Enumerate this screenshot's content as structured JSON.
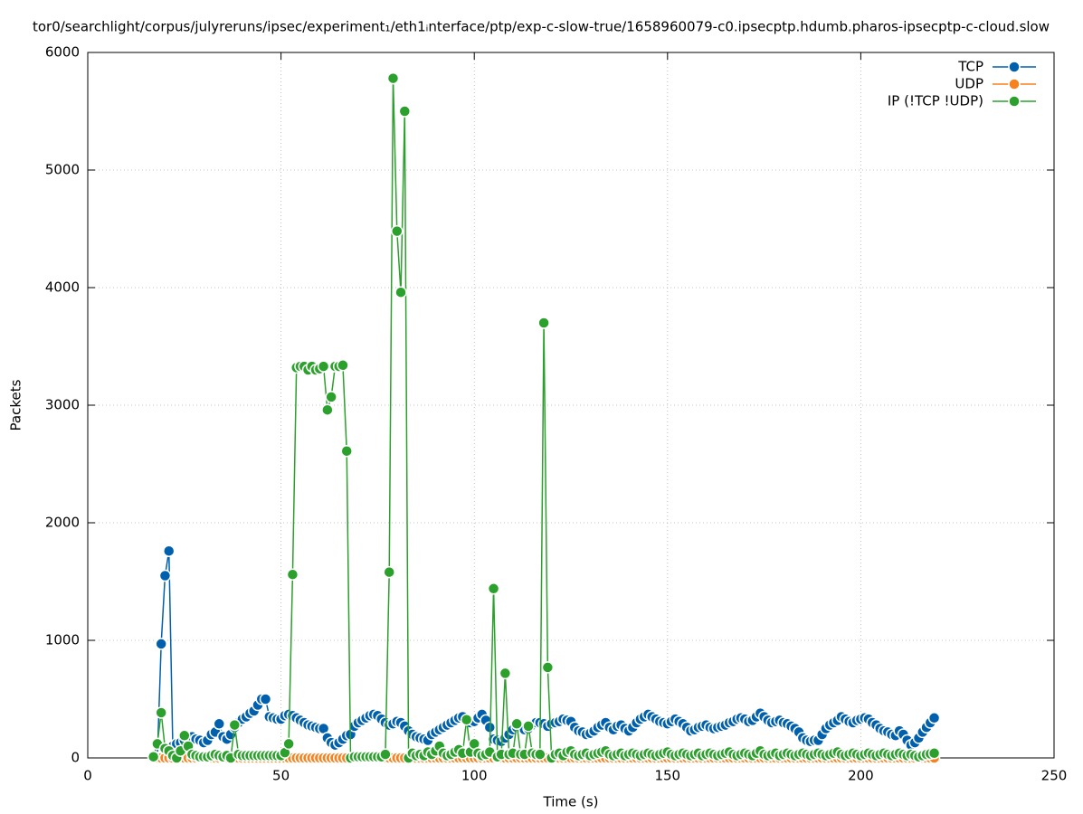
{
  "chart_data": {
    "type": "line",
    "title": "tor0/searchlight/corpus/julyreruns/ipsec/experiment₁/eth1ᵢnterface/ptp/exp-c-slow-true/1658960079-c0.ipsecptp.hdumb.pharos-ipsecptp-c-cloud.slow",
    "x_label": "Time (s)",
    "y_label": "Packets",
    "xlim": [
      0,
      250
    ],
    "xticks": [
      0,
      50,
      100,
      150,
      200,
      250
    ],
    "ylim": [
      0,
      6000
    ],
    "yticks": [
      0,
      1000,
      2000,
      3000,
      4000,
      5000,
      6000
    ],
    "grid": true,
    "legend": "top-right",
    "x": [
      17,
      18,
      19,
      20,
      21,
      22,
      23,
      24,
      25,
      26,
      27,
      28,
      29,
      30,
      31,
      32,
      33,
      34,
      35,
      36,
      37,
      38,
      39,
      40,
      41,
      42,
      43,
      44,
      45,
      46,
      47,
      48,
      49,
      50,
      51,
      52,
      53,
      54,
      55,
      56,
      57,
      58,
      59,
      60,
      61,
      62,
      63,
      64,
      65,
      66,
      67,
      68,
      69,
      70,
      71,
      72,
      73,
      74,
      75,
      76,
      77,
      78,
      79,
      80,
      81,
      82,
      83,
      84,
      85,
      86,
      87,
      88,
      89,
      90,
      91,
      92,
      93,
      94,
      95,
      96,
      97,
      98,
      99,
      100,
      101,
      102,
      103,
      104,
      105,
      106,
      107,
      108,
      109,
      110,
      111,
      112,
      113,
      114,
      115,
      116,
      117,
      118,
      119,
      120,
      121,
      122,
      123,
      124,
      125,
      126,
      127,
      128,
      129,
      130,
      131,
      132,
      133,
      134,
      135,
      136,
      137,
      138,
      139,
      140,
      141,
      142,
      143,
      144,
      145,
      146,
      147,
      148,
      149,
      150,
      151,
      152,
      153,
      154,
      155,
      156,
      157,
      158,
      159,
      160,
      161,
      162,
      163,
      164,
      165,
      166,
      167,
      168,
      169,
      170,
      171,
      172,
      173,
      174,
      175,
      176,
      177,
      178,
      179,
      180,
      181,
      182,
      183,
      184,
      185,
      186,
      187,
      188,
      189,
      190,
      191,
      192,
      193,
      194,
      195,
      196,
      197,
      198,
      199,
      200,
      201,
      202,
      203,
      204,
      205,
      206,
      207,
      208,
      209,
      210,
      211,
      212,
      213,
      214,
      215,
      216,
      217,
      218,
      219
    ],
    "series": [
      {
        "name": "TCP",
        "color": "#0060ad",
        "values": [
          0,
          0,
          970,
          1550,
          1760,
          100,
          120,
          130,
          150,
          170,
          180,
          160,
          150,
          130,
          150,
          200,
          220,
          290,
          180,
          160,
          200,
          260,
          300,
          330,
          350,
          380,
          400,
          450,
          500,
          500,
          350,
          340,
          330,
          330,
          360,
          370,
          360,
          340,
          320,
          300,
          280,
          270,
          260,
          250,
          250,
          170,
          130,
          110,
          130,
          160,
          190,
          200,
          270,
          300,
          320,
          340,
          360,
          370,
          360,
          330,
          300,
          280,
          290,
          310,
          300,
          270,
          230,
          200,
          180,
          170,
          160,
          150,
          200,
          220,
          240,
          260,
          280,
          300,
          320,
          340,
          350,
          320,
          300,
          310,
          340,
          370,
          320,
          260,
          160,
          150,
          140,
          170,
          200,
          240,
          260,
          260,
          240,
          250,
          280,
          300,
          300,
          290,
          270,
          290,
          300,
          310,
          330,
          320,
          310,
          260,
          230,
          220,
          200,
          210,
          230,
          260,
          280,
          300,
          260,
          240,
          270,
          280,
          250,
          230,
          260,
          300,
          330,
          350,
          370,
          350,
          330,
          310,
          300,
          290,
          310,
          330,
          310,
          290,
          260,
          230,
          240,
          260,
          270,
          280,
          260,
          250,
          260,
          270,
          280,
          300,
          310,
          330,
          340,
          330,
          310,
          320,
          350,
          380,
          350,
          320,
          300,
          310,
          320,
          300,
          290,
          270,
          250,
          220,
          170,
          150,
          140,
          150,
          150,
          200,
          250,
          280,
          300,
          320,
          350,
          330,
          310,
          300,
          320,
          330,
          340,
          330,
          300,
          280,
          250,
          230,
          220,
          200,
          190,
          230,
          200,
          150,
          110,
          130,
          170,
          220,
          260,
          300,
          340
        ]
      },
      {
        "name": "UDP",
        "color": "#f5821f",
        "values": [
          0,
          0,
          0,
          0,
          0,
          0,
          0,
          0,
          0,
          0,
          0,
          0,
          0,
          0,
          0,
          0,
          0,
          0,
          0,
          0,
          0,
          0,
          0,
          0,
          0,
          0,
          0,
          0,
          0,
          0,
          0,
          0,
          0,
          0,
          0,
          0,
          0,
          0,
          0,
          0,
          0,
          0,
          0,
          0,
          0,
          0,
          0,
          0,
          0,
          0,
          0,
          0,
          0,
          0,
          0,
          0,
          0,
          0,
          0,
          0,
          0,
          0,
          0,
          0,
          0,
          0,
          0,
          0,
          0,
          0,
          0,
          0,
          0,
          0,
          0,
          0,
          0,
          0,
          0,
          0,
          0,
          0,
          0,
          0,
          0,
          0,
          0,
          0,
          0,
          0,
          0,
          0,
          0,
          0,
          0,
          0,
          0,
          0,
          0,
          0,
          0,
          0,
          0,
          0,
          0,
          0,
          0,
          0,
          0,
          0,
          0,
          0,
          0,
          0,
          0,
          0,
          0,
          0,
          0,
          0,
          0,
          0,
          0,
          0,
          0,
          0,
          0,
          0,
          0,
          0,
          0,
          0,
          0,
          0,
          0,
          0,
          0,
          0,
          0,
          0,
          0,
          0,
          0,
          0,
          0,
          0,
          0,
          0,
          0,
          0,
          0,
          0,
          0,
          0,
          0,
          0,
          0,
          0,
          0,
          0,
          0,
          0,
          0,
          0,
          0,
          0,
          0,
          0,
          0,
          0,
          0,
          0,
          0,
          0,
          0,
          0,
          0,
          0,
          0,
          0,
          0,
          0,
          0,
          0,
          0,
          0,
          0,
          0,
          0,
          0,
          0,
          0,
          0,
          0,
          0,
          0,
          0,
          0,
          0,
          0,
          0,
          0,
          0
        ]
      },
      {
        "name": "IP (!TCP  !UDP)",
        "color": "#2ca02c",
        "values": [
          10,
          120,
          385,
          80,
          60,
          20,
          0,
          60,
          190,
          100,
          30,
          20,
          10,
          10,
          10,
          20,
          30,
          20,
          10,
          20,
          0,
          280,
          30,
          20,
          20,
          20,
          20,
          20,
          20,
          20,
          20,
          20,
          20,
          20,
          45,
          120,
          1560,
          3320,
          3330,
          3330,
          3300,
          3330,
          3300,
          3310,
          3330,
          2960,
          3070,
          3330,
          3330,
          3340,
          2610,
          0,
          10,
          10,
          10,
          10,
          10,
          10,
          10,
          10,
          30,
          1580,
          5780,
          4480,
          3960,
          5500,
          0,
          40,
          20,
          30,
          20,
          50,
          30,
          60,
          100,
          40,
          20,
          30,
          50,
          70,
          40,
          325,
          50,
          120,
          40,
          20,
          30,
          50,
          1440,
          10,
          30,
          720,
          30,
          40,
          290,
          30,
          30,
          270,
          40,
          30,
          30,
          3700,
          770,
          0,
          30,
          40,
          20,
          50,
          60,
          30,
          20,
          30,
          40,
          20,
          30,
          40,
          50,
          60,
          30,
          20,
          30,
          40,
          20,
          30,
          40,
          30,
          20,
          30,
          40,
          30,
          20,
          30,
          40,
          50,
          30,
          20,
          30,
          40,
          30,
          20,
          30,
          40,
          20,
          30,
          40,
          30,
          20,
          30,
          40,
          50,
          30,
          20,
          30,
          40,
          30,
          20,
          40,
          60,
          30,
          20,
          30,
          40,
          20,
          30,
          40,
          30,
          20,
          30,
          40,
          30,
          20,
          30,
          40,
          30,
          20,
          30,
          40,
          50,
          30,
          20,
          30,
          40,
          30,
          20,
          30,
          40,
          30,
          20,
          30,
          40,
          30,
          20,
          30,
          40,
          30,
          20,
          30,
          20,
          10,
          20,
          30,
          35,
          40
        ]
      }
    ]
  }
}
